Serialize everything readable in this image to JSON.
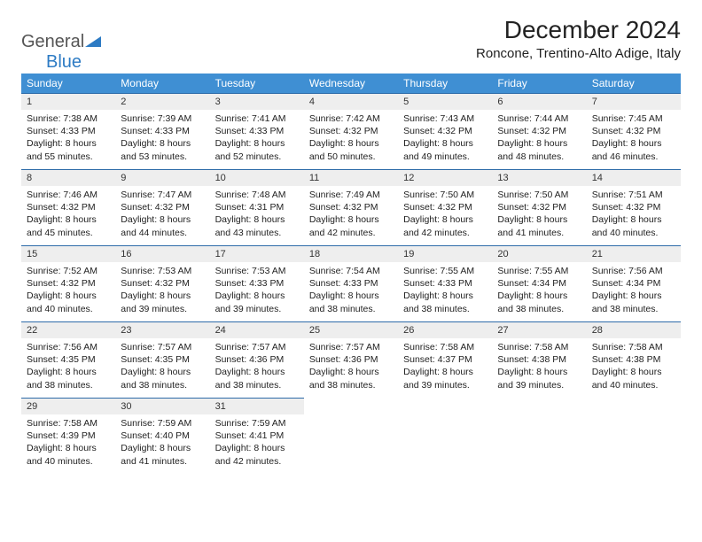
{
  "logo": {
    "general": "General",
    "blue": "Blue"
  },
  "title": "December 2024",
  "location": "Roncone, Trentino-Alto Adige, Italy",
  "colors": {
    "header_bg": "#3f8fd3",
    "header_text": "#ffffff",
    "daynum_bg": "#eeeeee",
    "daynum_border": "#2d6ba8",
    "body_bg": "#ffffff",
    "logo_blue": "#2d7bc4"
  },
  "day_labels": [
    "Sunday",
    "Monday",
    "Tuesday",
    "Wednesday",
    "Thursday",
    "Friday",
    "Saturday"
  ],
  "weeks": [
    [
      {
        "num": "1",
        "sr": "Sunrise: 7:38 AM",
        "ss": "Sunset: 4:33 PM",
        "dl": "Daylight: 8 hours and 55 minutes."
      },
      {
        "num": "2",
        "sr": "Sunrise: 7:39 AM",
        "ss": "Sunset: 4:33 PM",
        "dl": "Daylight: 8 hours and 53 minutes."
      },
      {
        "num": "3",
        "sr": "Sunrise: 7:41 AM",
        "ss": "Sunset: 4:33 PM",
        "dl": "Daylight: 8 hours and 52 minutes."
      },
      {
        "num": "4",
        "sr": "Sunrise: 7:42 AM",
        "ss": "Sunset: 4:32 PM",
        "dl": "Daylight: 8 hours and 50 minutes."
      },
      {
        "num": "5",
        "sr": "Sunrise: 7:43 AM",
        "ss": "Sunset: 4:32 PM",
        "dl": "Daylight: 8 hours and 49 minutes."
      },
      {
        "num": "6",
        "sr": "Sunrise: 7:44 AM",
        "ss": "Sunset: 4:32 PM",
        "dl": "Daylight: 8 hours and 48 minutes."
      },
      {
        "num": "7",
        "sr": "Sunrise: 7:45 AM",
        "ss": "Sunset: 4:32 PM",
        "dl": "Daylight: 8 hours and 46 minutes."
      }
    ],
    [
      {
        "num": "8",
        "sr": "Sunrise: 7:46 AM",
        "ss": "Sunset: 4:32 PM",
        "dl": "Daylight: 8 hours and 45 minutes."
      },
      {
        "num": "9",
        "sr": "Sunrise: 7:47 AM",
        "ss": "Sunset: 4:32 PM",
        "dl": "Daylight: 8 hours and 44 minutes."
      },
      {
        "num": "10",
        "sr": "Sunrise: 7:48 AM",
        "ss": "Sunset: 4:31 PM",
        "dl": "Daylight: 8 hours and 43 minutes."
      },
      {
        "num": "11",
        "sr": "Sunrise: 7:49 AM",
        "ss": "Sunset: 4:32 PM",
        "dl": "Daylight: 8 hours and 42 minutes."
      },
      {
        "num": "12",
        "sr": "Sunrise: 7:50 AM",
        "ss": "Sunset: 4:32 PM",
        "dl": "Daylight: 8 hours and 42 minutes."
      },
      {
        "num": "13",
        "sr": "Sunrise: 7:50 AM",
        "ss": "Sunset: 4:32 PM",
        "dl": "Daylight: 8 hours and 41 minutes."
      },
      {
        "num": "14",
        "sr": "Sunrise: 7:51 AM",
        "ss": "Sunset: 4:32 PM",
        "dl": "Daylight: 8 hours and 40 minutes."
      }
    ],
    [
      {
        "num": "15",
        "sr": "Sunrise: 7:52 AM",
        "ss": "Sunset: 4:32 PM",
        "dl": "Daylight: 8 hours and 40 minutes."
      },
      {
        "num": "16",
        "sr": "Sunrise: 7:53 AM",
        "ss": "Sunset: 4:32 PM",
        "dl": "Daylight: 8 hours and 39 minutes."
      },
      {
        "num": "17",
        "sr": "Sunrise: 7:53 AM",
        "ss": "Sunset: 4:33 PM",
        "dl": "Daylight: 8 hours and 39 minutes."
      },
      {
        "num": "18",
        "sr": "Sunrise: 7:54 AM",
        "ss": "Sunset: 4:33 PM",
        "dl": "Daylight: 8 hours and 38 minutes."
      },
      {
        "num": "19",
        "sr": "Sunrise: 7:55 AM",
        "ss": "Sunset: 4:33 PM",
        "dl": "Daylight: 8 hours and 38 minutes."
      },
      {
        "num": "20",
        "sr": "Sunrise: 7:55 AM",
        "ss": "Sunset: 4:34 PM",
        "dl": "Daylight: 8 hours and 38 minutes."
      },
      {
        "num": "21",
        "sr": "Sunrise: 7:56 AM",
        "ss": "Sunset: 4:34 PM",
        "dl": "Daylight: 8 hours and 38 minutes."
      }
    ],
    [
      {
        "num": "22",
        "sr": "Sunrise: 7:56 AM",
        "ss": "Sunset: 4:35 PM",
        "dl": "Daylight: 8 hours and 38 minutes."
      },
      {
        "num": "23",
        "sr": "Sunrise: 7:57 AM",
        "ss": "Sunset: 4:35 PM",
        "dl": "Daylight: 8 hours and 38 minutes."
      },
      {
        "num": "24",
        "sr": "Sunrise: 7:57 AM",
        "ss": "Sunset: 4:36 PM",
        "dl": "Daylight: 8 hours and 38 minutes."
      },
      {
        "num": "25",
        "sr": "Sunrise: 7:57 AM",
        "ss": "Sunset: 4:36 PM",
        "dl": "Daylight: 8 hours and 38 minutes."
      },
      {
        "num": "26",
        "sr": "Sunrise: 7:58 AM",
        "ss": "Sunset: 4:37 PM",
        "dl": "Daylight: 8 hours and 39 minutes."
      },
      {
        "num": "27",
        "sr": "Sunrise: 7:58 AM",
        "ss": "Sunset: 4:38 PM",
        "dl": "Daylight: 8 hours and 39 minutes."
      },
      {
        "num": "28",
        "sr": "Sunrise: 7:58 AM",
        "ss": "Sunset: 4:38 PM",
        "dl": "Daylight: 8 hours and 40 minutes."
      }
    ],
    [
      {
        "num": "29",
        "sr": "Sunrise: 7:58 AM",
        "ss": "Sunset: 4:39 PM",
        "dl": "Daylight: 8 hours and 40 minutes."
      },
      {
        "num": "30",
        "sr": "Sunrise: 7:59 AM",
        "ss": "Sunset: 4:40 PM",
        "dl": "Daylight: 8 hours and 41 minutes."
      },
      {
        "num": "31",
        "sr": "Sunrise: 7:59 AM",
        "ss": "Sunset: 4:41 PM",
        "dl": "Daylight: 8 hours and 42 minutes."
      },
      {
        "empty": true
      },
      {
        "empty": true
      },
      {
        "empty": true
      },
      {
        "empty": true
      }
    ]
  ]
}
